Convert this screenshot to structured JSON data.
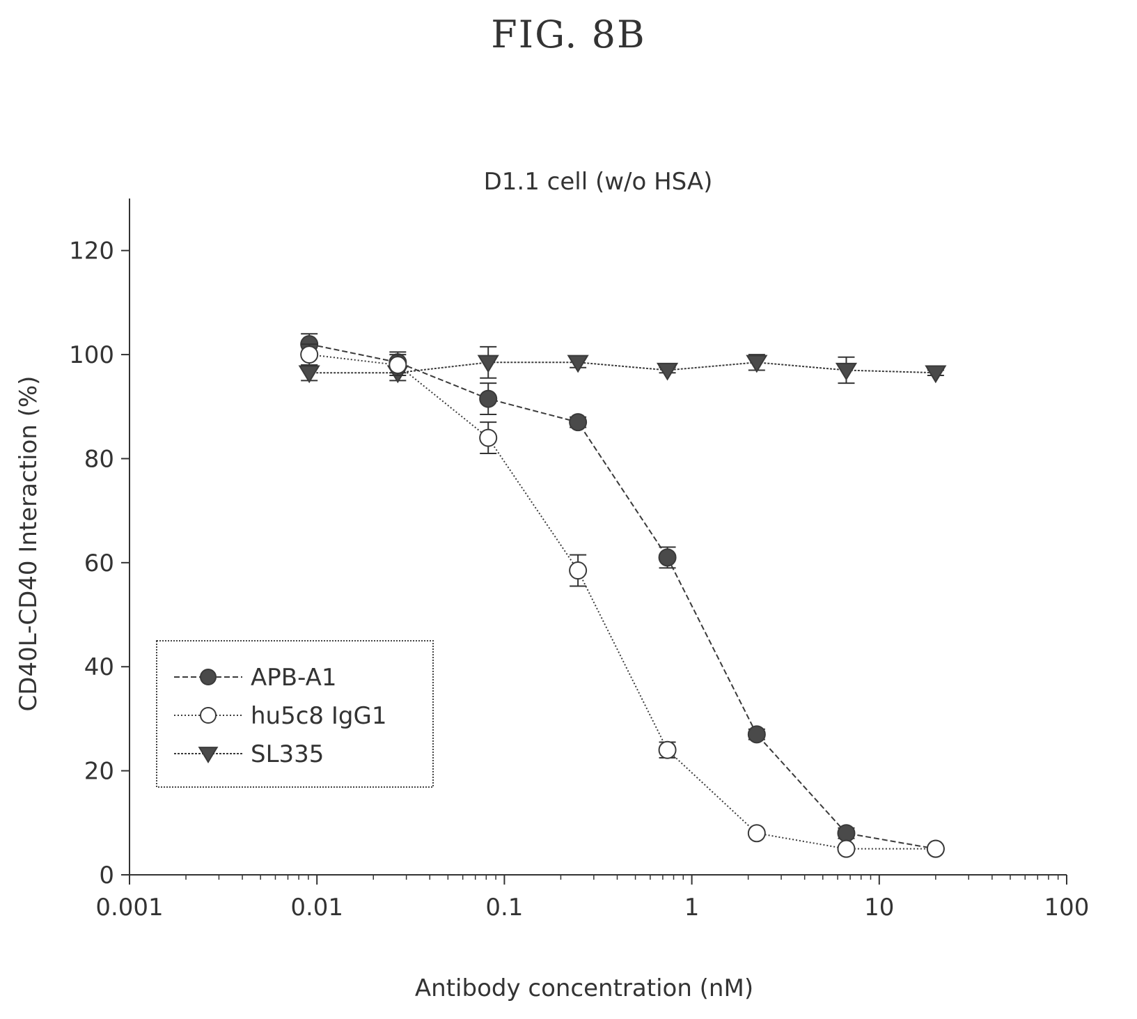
{
  "figure_label": "FIG.  8B",
  "chart_data": {
    "type": "line",
    "title": "D1.1 cell (w/o HSA)",
    "xlabel": "Antibody concentration (nM)",
    "ylabel": "CD40L-CD40 Interaction (%)",
    "xscale": "log",
    "xlim": [
      0.001,
      100
    ],
    "ylim": [
      0,
      130
    ],
    "x_ticks": [
      0.001,
      0.01,
      0.1,
      1,
      10,
      100
    ],
    "x_tick_labels": [
      "0.001",
      "0.01",
      "0.1",
      "1",
      "10",
      "100"
    ],
    "y_ticks": [
      0,
      20,
      40,
      60,
      80,
      100,
      120
    ],
    "y_tick_labels": [
      "0",
      "20",
      "40",
      "60",
      "80",
      "100",
      "120"
    ],
    "grid": false,
    "legend_position": "lower-left",
    "series": [
      {
        "name": "APB-A1",
        "marker": "filled-circle",
        "line": "dashed",
        "color": "#3a3a3a",
        "x": [
          0.0091,
          0.027,
          0.082,
          0.247,
          0.741,
          2.22,
          6.67,
          20
        ],
        "y": [
          102,
          98.5,
          91.5,
          87,
          61,
          27,
          8,
          5
        ],
        "err": [
          2,
          2,
          3,
          1,
          2,
          1,
          1,
          0.5
        ]
      },
      {
        "name": "hu5c8 IgG1",
        "marker": "open-circle",
        "line": "dotted",
        "color": "#3a3a3a",
        "x": [
          0.0091,
          0.027,
          0.082,
          0.247,
          0.741,
          2.22,
          6.67,
          20
        ],
        "y": [
          100,
          98,
          84,
          58.5,
          24,
          8,
          5,
          5
        ],
        "err": [
          2,
          2,
          3,
          3,
          1.5,
          0.5,
          0.5,
          0.5
        ]
      },
      {
        "name": "SL335",
        "marker": "filled-triangle-down",
        "line": "solid-dotted",
        "color": "#3a3a3a",
        "x": [
          0.0091,
          0.027,
          0.082,
          0.247,
          0.741,
          2.22,
          6.67,
          20
        ],
        "y": [
          96.5,
          96.5,
          98.5,
          98.5,
          97,
          98.5,
          97,
          96.5
        ],
        "err": [
          1.5,
          1.5,
          3,
          1,
          0.5,
          1.5,
          2.5,
          0.5
        ]
      }
    ]
  }
}
